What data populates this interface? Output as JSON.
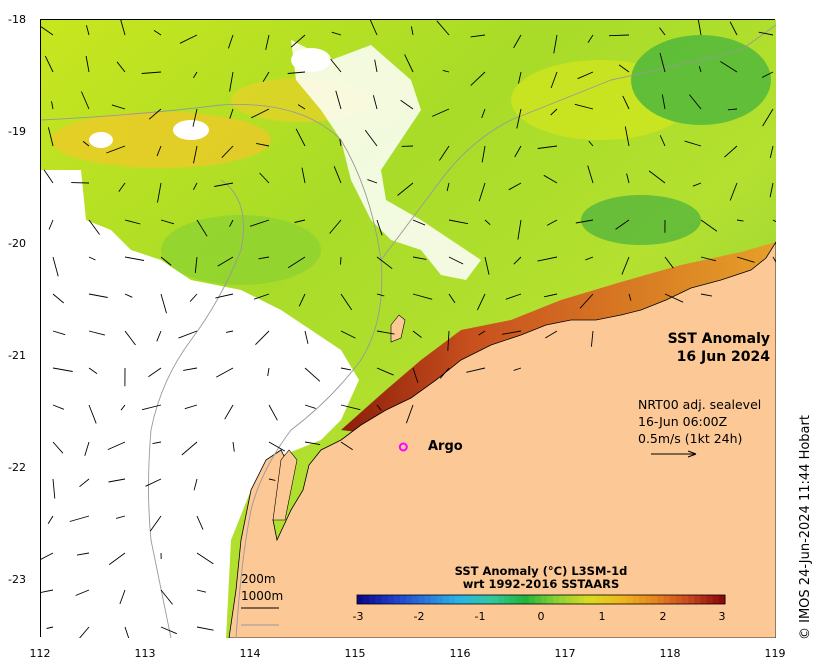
{
  "map": {
    "title_line1": "SST Anomaly",
    "title_line2": "16 Jun 2024",
    "lat_ticks": [
      "-18",
      "-19",
      "-20",
      "-21",
      "-22",
      "-23"
    ],
    "lon_ticks": [
      "112",
      "113",
      "114",
      "115",
      "116",
      "117",
      "118",
      "119"
    ],
    "lon_range": [
      112,
      119
    ],
    "lat_range": [
      -23.5,
      -18
    ],
    "colors": {
      "land": "#fcc896",
      "cold": "#0a0a8c",
      "neutral": "#1eb43c",
      "warm": "#8c0a0a",
      "argo_marker": "#ff00ff",
      "bathymetry": "#999999"
    }
  },
  "vectors": {
    "source_label": "NRT00 adj. sealevel",
    "time_label": "16-Jun 06:00Z",
    "scale_label": "0.5m/s (1kt 24h)"
  },
  "argo": {
    "label": "Argo",
    "lon": 115.45,
    "lat": -21.8
  },
  "depth_legend": {
    "line1": "200m",
    "line2": "1000m"
  },
  "colorbar": {
    "title_line1": "SST Anomaly (°C) L3SM-1d",
    "title_line2": "wrt 1992-2016 SSTAARS",
    "ticks": [
      "-3",
      "-2",
      "-1",
      "0",
      "1",
      "2",
      "3"
    ],
    "min": -3,
    "max": 3
  },
  "credit": "© IMOS 24-Jun-2024 11:44 Hobart"
}
